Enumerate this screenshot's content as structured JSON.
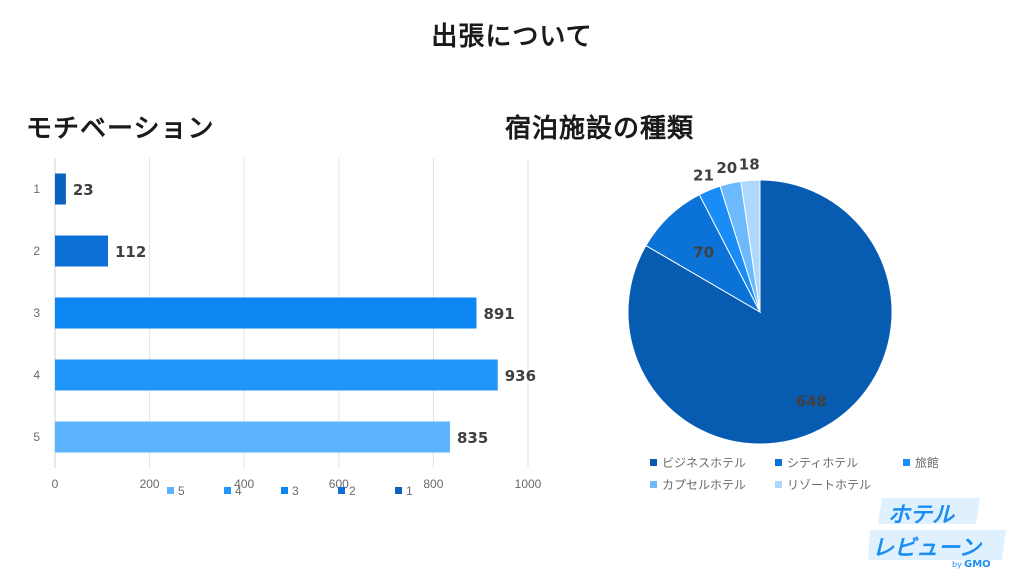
{
  "page": {
    "title": "出張について"
  },
  "chart_data": [
    {
      "type": "bar",
      "orientation": "horizontal",
      "title": "モチベーション",
      "categories": [
        "1",
        "2",
        "3",
        "4",
        "5"
      ],
      "values": [
        23,
        112,
        891,
        936,
        835
      ],
      "xlim": [
        0,
        1000
      ],
      "xticks": [
        "0",
        "200",
        "400",
        "600",
        "800",
        "1000"
      ],
      "grid": true,
      "legend_position": "bottom",
      "legend": [
        "5",
        "4",
        "3",
        "2",
        "1"
      ],
      "colors": [
        "#0a62c0",
        "#0b6fd6",
        "#0b86f2",
        "#2096fb",
        "#5cb3fe"
      ]
    },
    {
      "type": "pie",
      "title": "宿泊施設の種類",
      "labels": [
        "ビジネスホテル",
        "シティホテル",
        "旅館",
        "カプセルホテル",
        "リゾートホテル"
      ],
      "values": [
        648,
        70,
        21,
        20,
        18
      ],
      "colors": [
        "#075cb2",
        "#0b72d8",
        "#1a8cf6",
        "#6cbafc",
        "#aed8fd"
      ],
      "legend_position": "bottom"
    }
  ],
  "logo": {
    "line1": "ホテル",
    "line2": "レビューン",
    "byline": "by GMO"
  }
}
